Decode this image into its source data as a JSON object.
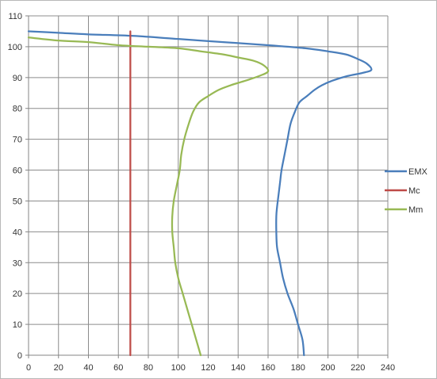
{
  "chart_data": {
    "type": "line",
    "title": "",
    "xlabel": "",
    "ylabel": "",
    "xlim": [
      0,
      240
    ],
    "ylim": [
      0,
      110
    ],
    "x_ticks": [
      0,
      20,
      40,
      60,
      80,
      100,
      120,
      140,
      160,
      180,
      200,
      220,
      240
    ],
    "y_ticks": [
      0,
      10,
      20,
      30,
      40,
      50,
      60,
      70,
      80,
      90,
      100,
      110
    ],
    "grid": "vertical and horizontal",
    "legend_position": "right",
    "series": [
      {
        "name": "EMX",
        "color": "#4a7ebb",
        "points": [
          [
            184,
            0
          ],
          [
            183,
            5
          ],
          [
            180,
            10
          ],
          [
            177,
            15
          ],
          [
            173,
            20
          ],
          [
            170,
            25
          ],
          [
            168,
            30
          ],
          [
            166,
            35
          ],
          [
            165.5,
            40
          ],
          [
            165.5,
            45
          ],
          [
            166,
            48
          ],
          [
            167,
            52
          ],
          [
            168,
            56
          ],
          [
            169,
            60
          ],
          [
            171,
            65
          ],
          [
            173,
            70
          ],
          [
            175,
            75
          ],
          [
            178,
            79
          ],
          [
            181,
            82
          ],
          [
            186,
            84
          ],
          [
            191,
            86
          ],
          [
            196,
            87.5
          ],
          [
            203,
            89
          ],
          [
            213,
            90.5
          ],
          [
            223,
            91.5
          ],
          [
            229,
            92.5
          ],
          [
            226,
            94.5
          ],
          [
            220,
            96
          ],
          [
            212,
            97.5
          ],
          [
            200,
            98.5
          ],
          [
            185,
            99.5
          ],
          [
            160,
            100.5
          ],
          [
            130,
            101.5
          ],
          [
            100,
            102.5
          ],
          [
            70,
            103.5
          ],
          [
            40,
            104
          ],
          [
            20,
            104.5
          ],
          [
            0,
            105
          ]
        ]
      },
      {
        "name": "Mc",
        "color": "#be4b48",
        "points": [
          [
            68,
            0
          ],
          [
            68,
            105
          ]
        ]
      },
      {
        "name": "Mm",
        "color": "#98b954",
        "points": [
          [
            115,
            0
          ],
          [
            112,
            5
          ],
          [
            109,
            10
          ],
          [
            106,
            15
          ],
          [
            103,
            20
          ],
          [
            100,
            25
          ],
          [
            98,
            30
          ],
          [
            97,
            35
          ],
          [
            96,
            40
          ],
          [
            96,
            45
          ],
          [
            97,
            50
          ],
          [
            99,
            55
          ],
          [
            101,
            60
          ],
          [
            102,
            65
          ],
          [
            104,
            70
          ],
          [
            107,
            75
          ],
          [
            110,
            79
          ],
          [
            114,
            82
          ],
          [
            120,
            84
          ],
          [
            127,
            86
          ],
          [
            135,
            87.5
          ],
          [
            145,
            89
          ],
          [
            154,
            90.5
          ],
          [
            160,
            92
          ],
          [
            157,
            94
          ],
          [
            150,
            95.5
          ],
          [
            140,
            96.5
          ],
          [
            130,
            97.5
          ],
          [
            115,
            98.5
          ],
          [
            100,
            99.5
          ],
          [
            80,
            100
          ],
          [
            60,
            100.5
          ],
          [
            40,
            101.5
          ],
          [
            20,
            102
          ],
          [
            0,
            103
          ]
        ]
      }
    ]
  }
}
